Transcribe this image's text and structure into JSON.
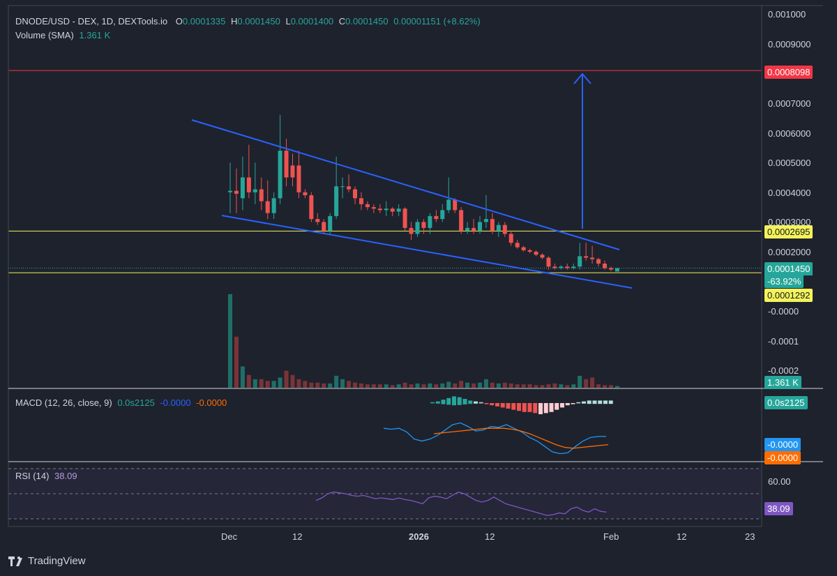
{
  "header": {
    "symbol": "DNODE/USD - DEX, 1D, DEXTools.io",
    "o_label": "O",
    "o_value": "0.0001335",
    "h_label": "H",
    "h_value": "0.0001450",
    "l_label": "L",
    "l_value": "0.0001400",
    "c_label": "C",
    "c_value": "0.0001450",
    "change": "0.00001151 (+8.62%)"
  },
  "volume_legend": {
    "label": "Volume (SMA)",
    "value": "1.361 K"
  },
  "macd_legend": {
    "label": "MACD (12, 26, close, 9)",
    "hist": "0.0s2125",
    "macd": "-0.0000",
    "signal": "-0.0000"
  },
  "rsi_legend": {
    "label": "RSI (14)",
    "value": "38.09"
  },
  "price_tags": {
    "resistance": "0.0008098",
    "support_high": "0.0002695",
    "last": "0.0001450",
    "pct": "-63.92%",
    "support_low": "0.0001292",
    "volume": "1.361 K",
    "macd_hist": "0.0s2125",
    "macd_line": "-0.0000",
    "signal_line": "-0.0000",
    "rsi": "38.09"
  },
  "y_axis_labels": [
    "0.001000",
    "0.0009000",
    "0.0007000",
    "0.0006000",
    "0.0005000",
    "0.0004000",
    "0.0003000",
    "0.0002000",
    "-0.0000",
    "-0.0001",
    "-0.0002"
  ],
  "rsi_axis_label": "60.00",
  "x_axis_labels": [
    "Dec",
    "12",
    "2026",
    "12",
    "Feb",
    "12",
    "23"
  ],
  "brand": "TradingView",
  "colors": {
    "up": "#26a69a",
    "down": "#ef5350",
    "trend": "#2962ff",
    "support": "#f3f35a",
    "resistance": "#f23645",
    "macd": "#2196f3",
    "signal": "#ff6d00",
    "rsi": "#7e57c2"
  },
  "chart_data": {
    "type": "candlestick",
    "symbol": "DNODE/USD",
    "interval": "1D",
    "x_ticks": [
      "Dec",
      "12",
      "2026",
      "12",
      "Feb",
      "12",
      "23"
    ],
    "candles": [
      {
        "o": 0.0004,
        "h": 0.0005,
        "l": 0.00033,
        "c": 0.000405
      },
      {
        "o": 0.000405,
        "h": 0.00048,
        "l": 0.00033,
        "c": 0.000395
      },
      {
        "o": 0.00038,
        "h": 0.00052,
        "l": 0.00034,
        "c": 0.00045
      },
      {
        "o": 0.00045,
        "h": 0.00056,
        "l": 0.00038,
        "c": 0.0004
      },
      {
        "o": 0.0004,
        "h": 0.0005,
        "l": 0.00036,
        "c": 0.00041
      },
      {
        "o": 0.00041,
        "h": 0.00045,
        "l": 0.00034,
        "c": 0.00037
      },
      {
        "o": 0.00037,
        "h": 0.00044,
        "l": 0.00031,
        "c": 0.00033
      },
      {
        "o": 0.00033,
        "h": 0.0004,
        "l": 0.00031,
        "c": 0.00038
      },
      {
        "o": 0.00038,
        "h": 0.00066,
        "l": 0.00036,
        "c": 0.00054
      },
      {
        "o": 0.00054,
        "h": 0.00058,
        "l": 0.00042,
        "c": 0.00045
      },
      {
        "o": 0.00049,
        "h": 0.00053,
        "l": 0.00042,
        "c": 0.00045
      },
      {
        "o": 0.00049,
        "h": 0.00054,
        "l": 0.00038,
        "c": 0.0004
      },
      {
        "o": 0.0004,
        "h": 0.00041,
        "l": 0.00038,
        "c": 0.00039
      },
      {
        "o": 0.00039,
        "h": 0.0004,
        "l": 0.0003,
        "c": 0.00031
      },
      {
        "o": 0.00031,
        "h": 0.00033,
        "l": 0.00029,
        "c": 0.0003
      },
      {
        "o": 0.0003,
        "h": 0.00031,
        "l": 0.00026,
        "c": 0.00027
      },
      {
        "o": 0.00027,
        "h": 0.00033,
        "l": 0.00026,
        "c": 0.00032
      },
      {
        "o": 0.00032,
        "h": 0.00052,
        "l": 0.00031,
        "c": 0.00042
      },
      {
        "o": 0.00042,
        "h": 0.00045,
        "l": 0.00038,
        "c": 0.00042
      },
      {
        "o": 0.00042,
        "h": 0.00046,
        "l": 0.0004,
        "c": 0.00041
      },
      {
        "o": 0.00041,
        "h": 0.00042,
        "l": 0.00036,
        "c": 0.00038
      },
      {
        "o": 0.00038,
        "h": 0.0004,
        "l": 0.00034,
        "c": 0.00036
      },
      {
        "o": 0.00036,
        "h": 0.00037,
        "l": 0.00034,
        "c": 0.00035
      },
      {
        "o": 0.00035,
        "h": 0.00036,
        "l": 0.00033,
        "c": 0.000345
      },
      {
        "o": 0.000345,
        "h": 0.00036,
        "l": 0.00033,
        "c": 0.00034
      },
      {
        "o": 0.00034,
        "h": 0.00037,
        "l": 0.00032,
        "c": 0.000345
      },
      {
        "o": 0.000345,
        "h": 0.00035,
        "l": 0.00032,
        "c": 0.000335
      },
      {
        "o": 0.000335,
        "h": 0.00036,
        "l": 0.00032,
        "c": 0.000345
      },
      {
        "o": 0.000345,
        "h": 0.00035,
        "l": 0.00027,
        "c": 0.00028
      },
      {
        "o": 0.00028,
        "h": 0.0003,
        "l": 0.00024,
        "c": 0.00026
      },
      {
        "o": 0.00026,
        "h": 0.00031,
        "l": 0.00025,
        "c": 0.0003
      },
      {
        "o": 0.0003,
        "h": 0.00031,
        "l": 0.00026,
        "c": 0.00028
      },
      {
        "o": 0.00028,
        "h": 0.00033,
        "l": 0.00026,
        "c": 0.00032
      },
      {
        "o": 0.00032,
        "h": 0.00034,
        "l": 0.0003,
        "c": 0.00031
      },
      {
        "o": 0.00031,
        "h": 0.00036,
        "l": 0.0003,
        "c": 0.00034
      },
      {
        "o": 0.00034,
        "h": 0.00045,
        "l": 0.00033,
        "c": 0.000375
      },
      {
        "o": 0.000375,
        "h": 0.00038,
        "l": 0.00033,
        "c": 0.00034
      },
      {
        "o": 0.00034,
        "h": 0.00035,
        "l": 0.00026,
        "c": 0.00027
      },
      {
        "o": 0.00027,
        "h": 0.0003,
        "l": 0.00026,
        "c": 0.00028
      },
      {
        "o": 0.00028,
        "h": 0.00031,
        "l": 0.00026,
        "c": 0.00027
      },
      {
        "o": 0.00027,
        "h": 0.00032,
        "l": 0.00026,
        "c": 0.0003
      },
      {
        "o": 0.0003,
        "h": 0.00039,
        "l": 0.00028,
        "c": 0.00031
      },
      {
        "o": 0.00031,
        "h": 0.00033,
        "l": 0.00026,
        "c": 0.00027
      },
      {
        "o": 0.00027,
        "h": 0.0003,
        "l": 0.00025,
        "c": 0.00029
      },
      {
        "o": 0.00029,
        "h": 0.0003,
        "l": 0.00025,
        "c": 0.00026
      },
      {
        "o": 0.00026,
        "h": 0.00027,
        "l": 0.00022,
        "c": 0.00023
      },
      {
        "o": 0.00023,
        "h": 0.00024,
        "l": 0.00021,
        "c": 0.000215
      },
      {
        "o": 0.000215,
        "h": 0.00022,
        "l": 0.0002,
        "c": 0.000205
      },
      {
        "o": 0.000205,
        "h": 0.00021,
        "l": 0.000195,
        "c": 0.0002
      },
      {
        "o": 0.0002,
        "h": 0.000205,
        "l": 0.000185,
        "c": 0.00019
      },
      {
        "o": 0.00019,
        "h": 0.000195,
        "l": 0.000175,
        "c": 0.00018
      },
      {
        "o": 0.00018,
        "h": 0.000185,
        "l": 0.00014,
        "c": 0.00015
      },
      {
        "o": 0.00015,
        "h": 0.00016,
        "l": 0.00014,
        "c": 0.000145
      },
      {
        "o": 0.000145,
        "h": 0.000155,
        "l": 0.00014,
        "c": 0.00015
      },
      {
        "o": 0.00015,
        "h": 0.00016,
        "l": 0.00014,
        "c": 0.000145
      },
      {
        "o": 0.000145,
        "h": 0.00016,
        "l": 0.00014,
        "c": 0.00015
      },
      {
        "o": 0.00015,
        "h": 0.00023,
        "l": 0.00014,
        "c": 0.000185
      },
      {
        "o": 0.000185,
        "h": 0.00023,
        "l": 0.00017,
        "c": 0.00018
      },
      {
        "o": 0.00018,
        "h": 0.00022,
        "l": 0.00016,
        "c": 0.000175
      },
      {
        "o": 0.000175,
        "h": 0.00018,
        "l": 0.00015,
        "c": 0.00016
      },
      {
        "o": 0.00016,
        "h": 0.00017,
        "l": 0.00014,
        "c": 0.000145
      },
      {
        "o": 0.000145,
        "h": 0.00015,
        "l": 0.000135,
        "c": 0.00014
      },
      {
        "o": 0.0001335,
        "h": 0.000145,
        "l": 0.00014,
        "c": 0.000145
      }
    ],
    "volume": [
      110,
      60,
      25,
      15,
      10,
      10,
      8,
      8,
      12,
      20,
      15,
      10,
      8,
      6,
      6,
      5,
      5,
      14,
      10,
      8,
      6,
      5,
      4,
      4,
      4,
      4,
      3,
      4,
      6,
      4,
      5,
      4,
      5,
      4,
      5,
      7,
      5,
      8,
      6,
      5,
      6,
      10,
      6,
      5,
      6,
      5,
      4,
      4,
      4,
      3,
      3,
      4,
      5,
      4,
      3,
      4,
      14,
      10,
      12,
      4,
      3,
      3,
      2
    ],
    "macd_histogram": [
      1,
      2,
      4,
      6,
      8,
      7,
      5,
      3,
      2,
      1,
      -1,
      -2,
      -3,
      -4,
      -5,
      -6,
      -7,
      -8,
      -8,
      -9,
      -10,
      -9,
      -8,
      -6,
      -4,
      -2,
      -1,
      1,
      2,
      3,
      3,
      3,
      3,
      3
    ],
    "macd_line": [
      6,
      5,
      6,
      2,
      -6,
      -8,
      -6,
      -2,
      4,
      10,
      12,
      8,
      3,
      4,
      8,
      7,
      10,
      6,
      2,
      -4,
      -8,
      -14,
      -20,
      -22,
      -21,
      -14,
      -8,
      -4,
      -3,
      -3
    ],
    "signal_line": [
      0,
      1,
      2,
      3,
      4,
      5,
      6,
      6,
      6,
      5,
      3,
      0,
      -4,
      -8,
      -12,
      -15,
      -16,
      -15,
      -14,
      -13,
      -12
    ],
    "rsi": [
      52,
      55,
      60,
      62,
      61,
      60,
      58,
      57,
      58,
      56,
      54,
      55,
      54,
      53,
      55,
      53,
      52,
      50,
      48,
      55,
      57,
      56,
      54,
      58,
      62,
      60,
      56,
      52,
      50,
      52,
      56,
      52,
      48,
      46,
      44,
      42,
      40,
      38,
      36,
      34,
      35,
      37,
      36,
      42,
      44,
      40,
      38,
      42,
      39,
      38
    ],
    "support_levels": [
      0.0002695,
      0.0001292
    ],
    "resistance_level": 0.0008098,
    "last_price": 0.000145,
    "change_pct": "-63.92%",
    "y_range": [
      0.0001,
      0.00105
    ]
  }
}
